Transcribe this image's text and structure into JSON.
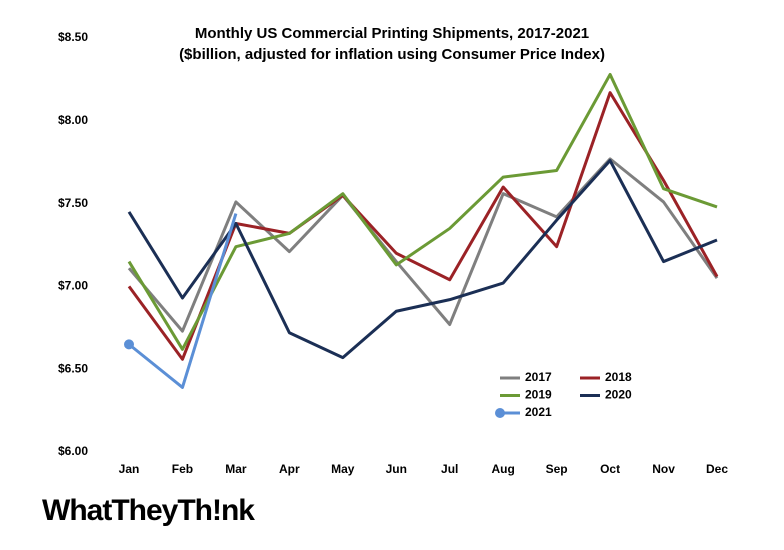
{
  "chart_data": {
    "type": "line",
    "title": "Monthly US Commercial Printing Shipments, 2017-2021",
    "subtitle": "($billion, adjusted for inflation using Consumer Price Index)",
    "logo": "WhatTheyTh!nk",
    "categories": [
      "Jan",
      "Feb",
      "Mar",
      "Apr",
      "May",
      "Jun",
      "Jul",
      "Aug",
      "Sep",
      "Oct",
      "Nov",
      "Dec"
    ],
    "ylim": [
      6.0,
      8.5
    ],
    "yticks": [
      {
        "value": 6.0,
        "label": "$6.00"
      },
      {
        "value": 6.5,
        "label": "$6.50"
      },
      {
        "value": 7.0,
        "label": "$7.00"
      },
      {
        "value": 7.5,
        "label": "$7.50"
      },
      {
        "value": 8.0,
        "label": "$8.00"
      },
      {
        "value": 8.5,
        "label": "$8.50"
      }
    ],
    "grid": false,
    "legend": "lower right",
    "series": [
      {
        "name": "2017",
        "color": "#7f7f7f",
        "values": [
          7.11,
          6.73,
          7.51,
          7.21,
          7.55,
          7.15,
          6.77,
          7.56,
          7.42,
          7.77,
          7.51,
          7.05
        ]
      },
      {
        "name": "2018",
        "color": "#9b2226",
        "values": [
          7.0,
          6.56,
          7.38,
          7.32,
          7.55,
          7.2,
          7.04,
          7.6,
          7.24,
          8.17,
          7.64,
          7.06
        ]
      },
      {
        "name": "2019",
        "color": "#6b9a35",
        "values": [
          7.15,
          6.62,
          7.24,
          7.32,
          7.56,
          7.13,
          7.35,
          7.66,
          7.7,
          8.28,
          7.59,
          7.48
        ]
      },
      {
        "name": "2020",
        "color": "#1b2f55",
        "values": [
          7.45,
          6.93,
          7.38,
          6.72,
          6.57,
          6.85,
          6.92,
          7.02,
          7.4,
          7.76,
          7.15,
          7.28
        ]
      },
      {
        "name": "2021",
        "color": "#5b8fd6",
        "values": [
          6.65,
          6.39,
          7.44,
          null,
          null,
          null,
          null,
          null,
          null,
          null,
          null,
          null
        ]
      }
    ]
  }
}
